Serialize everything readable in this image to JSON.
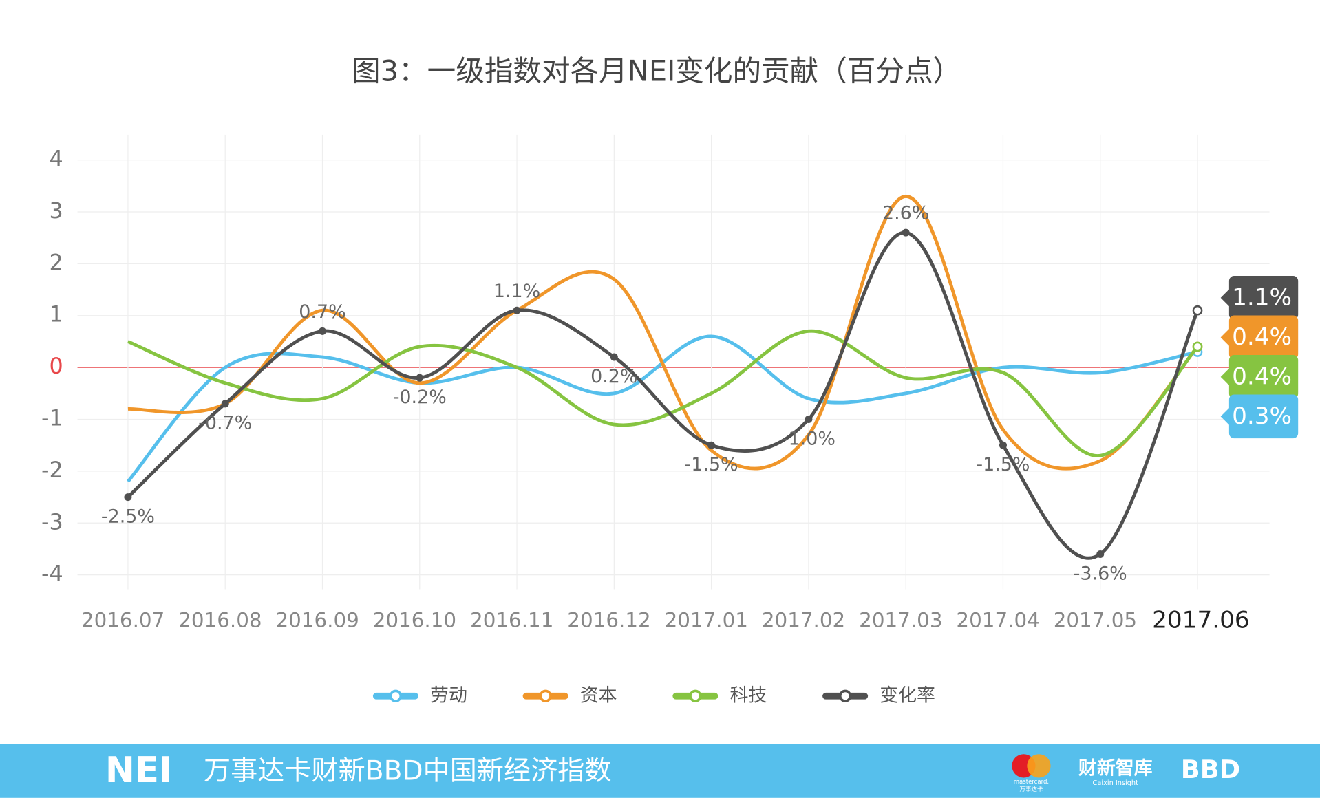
{
  "chart_data": {
    "type": "line",
    "title": "图3：一级指数对各月NEI变化的贡献（百分点）",
    "categories": [
      "2016.07",
      "2016.08",
      "2016.09",
      "2016.10",
      "2016.11",
      "2016.12",
      "2017.01",
      "2017.02",
      "2017.03",
      "2017.04",
      "2017.05",
      "2017.06"
    ],
    "series": [
      {
        "name": "劳动",
        "color": "#56bfec",
        "values": [
          -2.2,
          0.0,
          0.2,
          -0.3,
          0.0,
          -0.5,
          0.6,
          -0.6,
          -0.5,
          0.0,
          -0.1,
          0.3
        ],
        "value_labels": [
          null,
          null,
          null,
          null,
          null,
          null,
          null,
          null,
          null,
          null,
          null,
          "0.3%"
        ]
      },
      {
        "name": "资本",
        "color": "#f0962a",
        "values": [
          -0.8,
          -0.7,
          1.1,
          -0.3,
          1.1,
          1.7,
          -1.6,
          -1.3,
          3.3,
          -1.2,
          -1.8,
          0.4
        ],
        "value_labels": [
          null,
          null,
          null,
          null,
          null,
          null,
          null,
          null,
          null,
          null,
          null,
          "0.4%"
        ]
      },
      {
        "name": "科技",
        "color": "#86c441",
        "values": [
          0.5,
          -0.3,
          -0.6,
          0.4,
          0.0,
          -1.1,
          -0.5,
          0.7,
          -0.2,
          -0.1,
          -1.7,
          0.4
        ],
        "value_labels": [
          null,
          null,
          null,
          null,
          null,
          null,
          null,
          null,
          null,
          null,
          null,
          "0.4%"
        ]
      },
      {
        "name": "变化率",
        "color": "#505050",
        "values": [
          -2.5,
          -0.7,
          0.7,
          -0.2,
          1.1,
          0.2,
          -1.5,
          -1.0,
          2.6,
          -1.5,
          -3.6,
          1.1
        ],
        "value_labels": [
          "-2.5%",
          "-0.7%",
          "0.7%",
          "-0.2%",
          "1.1%",
          "0.2%",
          "-1.5%",
          "-1.0%",
          "2.6%",
          "-1.5%",
          "-3.6%",
          "1.1%"
        ]
      }
    ],
    "ylim": [
      -4,
      4
    ],
    "yticks": [
      -4,
      -3,
      -2,
      -1,
      0,
      1,
      2,
      3,
      4
    ],
    "grid": true,
    "legend": "bottom"
  },
  "footer": {
    "logo": "NEI",
    "name": "万事达卡财新BBD中国新经济指数",
    "mastercard": "mastercard.",
    "mastercard_cn": "万事达卡",
    "caixin": "财新智库",
    "caixin_en": "Caixin Insight",
    "bbd": "BBD"
  }
}
